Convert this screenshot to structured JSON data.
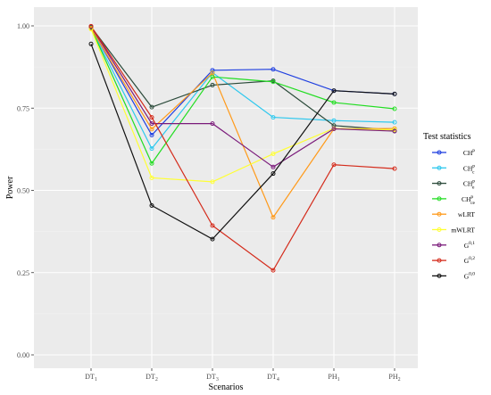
{
  "chart_data": {
    "type": "line",
    "title": "",
    "xlabel": "Scenarios",
    "ylabel": "Power",
    "categories": [
      {
        "base": "DT",
        "sub": "1"
      },
      {
        "base": "DT",
        "sub": "2"
      },
      {
        "base": "DT",
        "sub": "3"
      },
      {
        "base": "DT",
        "sub": "4"
      },
      {
        "base": "PH",
        "sub": "1"
      },
      {
        "base": "PH",
        "sub": "2"
      }
    ],
    "ylim": [
      0,
      1
    ],
    "yticks": [
      "0.00",
      "0.25",
      "0.50",
      "0.75",
      "1.00"
    ],
    "grid": true,
    "legend": {
      "title": "Test statistics",
      "position": "right"
    },
    "series": [
      {
        "name": "CH",
        "sup": "p",
        "sub": "",
        "color": "#1f3fe0",
        "values": [
          0.995,
          0.668,
          0.865,
          0.868,
          0.803,
          0.793
        ]
      },
      {
        "name": "CH",
        "sup": "p",
        "sub": "c",
        "color": "#2ec8ee",
        "values": [
          0.993,
          0.627,
          0.858,
          0.722,
          0.712,
          0.707
        ]
      },
      {
        "name": "CH",
        "sup": "p",
        "sub": "e",
        "color": "#2b4a3a",
        "values": [
          0.997,
          0.753,
          0.82,
          0.833,
          0.697,
          0.683
        ]
      },
      {
        "name": "CH",
        "sup": "p",
        "sub": "ce",
        "color": "#22dd22",
        "values": [
          0.994,
          0.582,
          0.845,
          0.83,
          0.767,
          0.748
        ]
      },
      {
        "name": "wLRT",
        "sup": "",
        "sub": "",
        "color": "#ff9a1a",
        "values": [
          0.993,
          0.686,
          0.857,
          0.418,
          0.687,
          0.688
        ]
      },
      {
        "name": "mWLRT",
        "sup": "",
        "sub": "",
        "color": "#ffff33",
        "values": [
          0.99,
          0.538,
          0.526,
          0.611,
          0.688,
          0.684
        ]
      },
      {
        "name": "G",
        "sup": "0,1",
        "sub": "",
        "color": "#7a1a7a",
        "values": [
          0.998,
          0.703,
          0.703,
          0.571,
          0.687,
          0.68
        ]
      },
      {
        "name": "G",
        "sup": "0,2",
        "sub": "",
        "color": "#d42a1a",
        "values": [
          0.999,
          0.722,
          0.393,
          0.257,
          0.578,
          0.566
        ]
      },
      {
        "name": "G",
        "sup": "0,0",
        "sub": "",
        "color": "#111111",
        "values": [
          0.945,
          0.454,
          0.352,
          0.551,
          0.803,
          0.793
        ]
      }
    ]
  }
}
